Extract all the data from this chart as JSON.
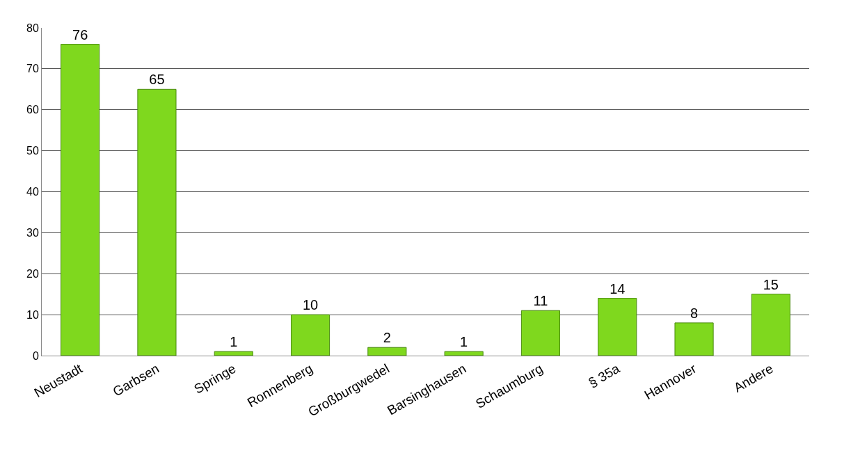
{
  "chart_data": {
    "type": "bar",
    "categories": [
      "Neustadt",
      "Garbsen",
      "Springe",
      "Ronnenberg",
      "Großburgwedel",
      "Barsinghausen",
      "Schaumburg",
      "§ 35a",
      "Hannover",
      "Andere"
    ],
    "values": [
      76,
      65,
      1,
      10,
      2,
      1,
      11,
      14,
      8,
      15
    ],
    "color": "#7fd81e",
    "ylim": [
      0,
      80
    ],
    "yticks": [
      0,
      10,
      20,
      30,
      40,
      50,
      60,
      70,
      80
    ],
    "grid": "y",
    "data_labels": true
  }
}
